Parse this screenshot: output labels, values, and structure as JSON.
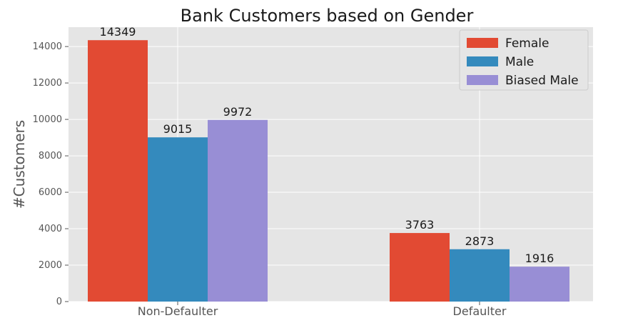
{
  "chart_data": {
    "type": "bar",
    "title": "Bank Customers based on Gender",
    "xlabel": "",
    "ylabel": "#Customers",
    "categories": [
      "Non-Defaulter",
      "Defaulter"
    ],
    "series": [
      {
        "name": "Female",
        "values": [
          14349,
          3763
        ],
        "color": "#e24a33"
      },
      {
        "name": "Male",
        "values": [
          9015,
          2873
        ],
        "color": "#348abd"
      },
      {
        "name": "Biased Male",
        "values": [
          9972,
          1916
        ],
        "color": "#988ed5"
      }
    ],
    "ylim": [
      0,
      15064
    ],
    "yticks": [
      0,
      2000,
      4000,
      6000,
      8000,
      10000,
      12000,
      14000
    ],
    "grid": true,
    "legend": "top-right",
    "background": "#e5e5e5"
  }
}
